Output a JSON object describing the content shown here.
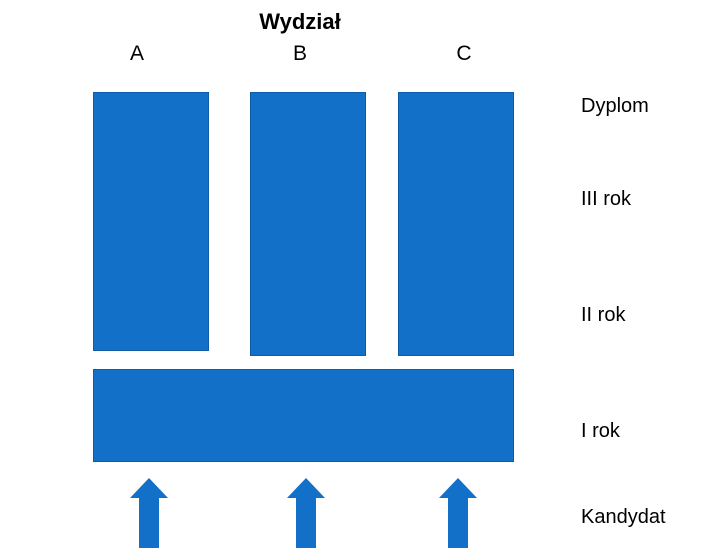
{
  "title": "Wydział",
  "faculties": [
    "A",
    "B",
    "C"
  ],
  "levels": {
    "diploma": "Dyplom",
    "year3": "III rok",
    "year2": "II rok",
    "year1": "I rok",
    "candidate": "Kandydat"
  },
  "colors": {
    "block_fill": "#1270c8",
    "block_border": "#0f5ca6",
    "arrow_fill": "#1270c8"
  }
}
